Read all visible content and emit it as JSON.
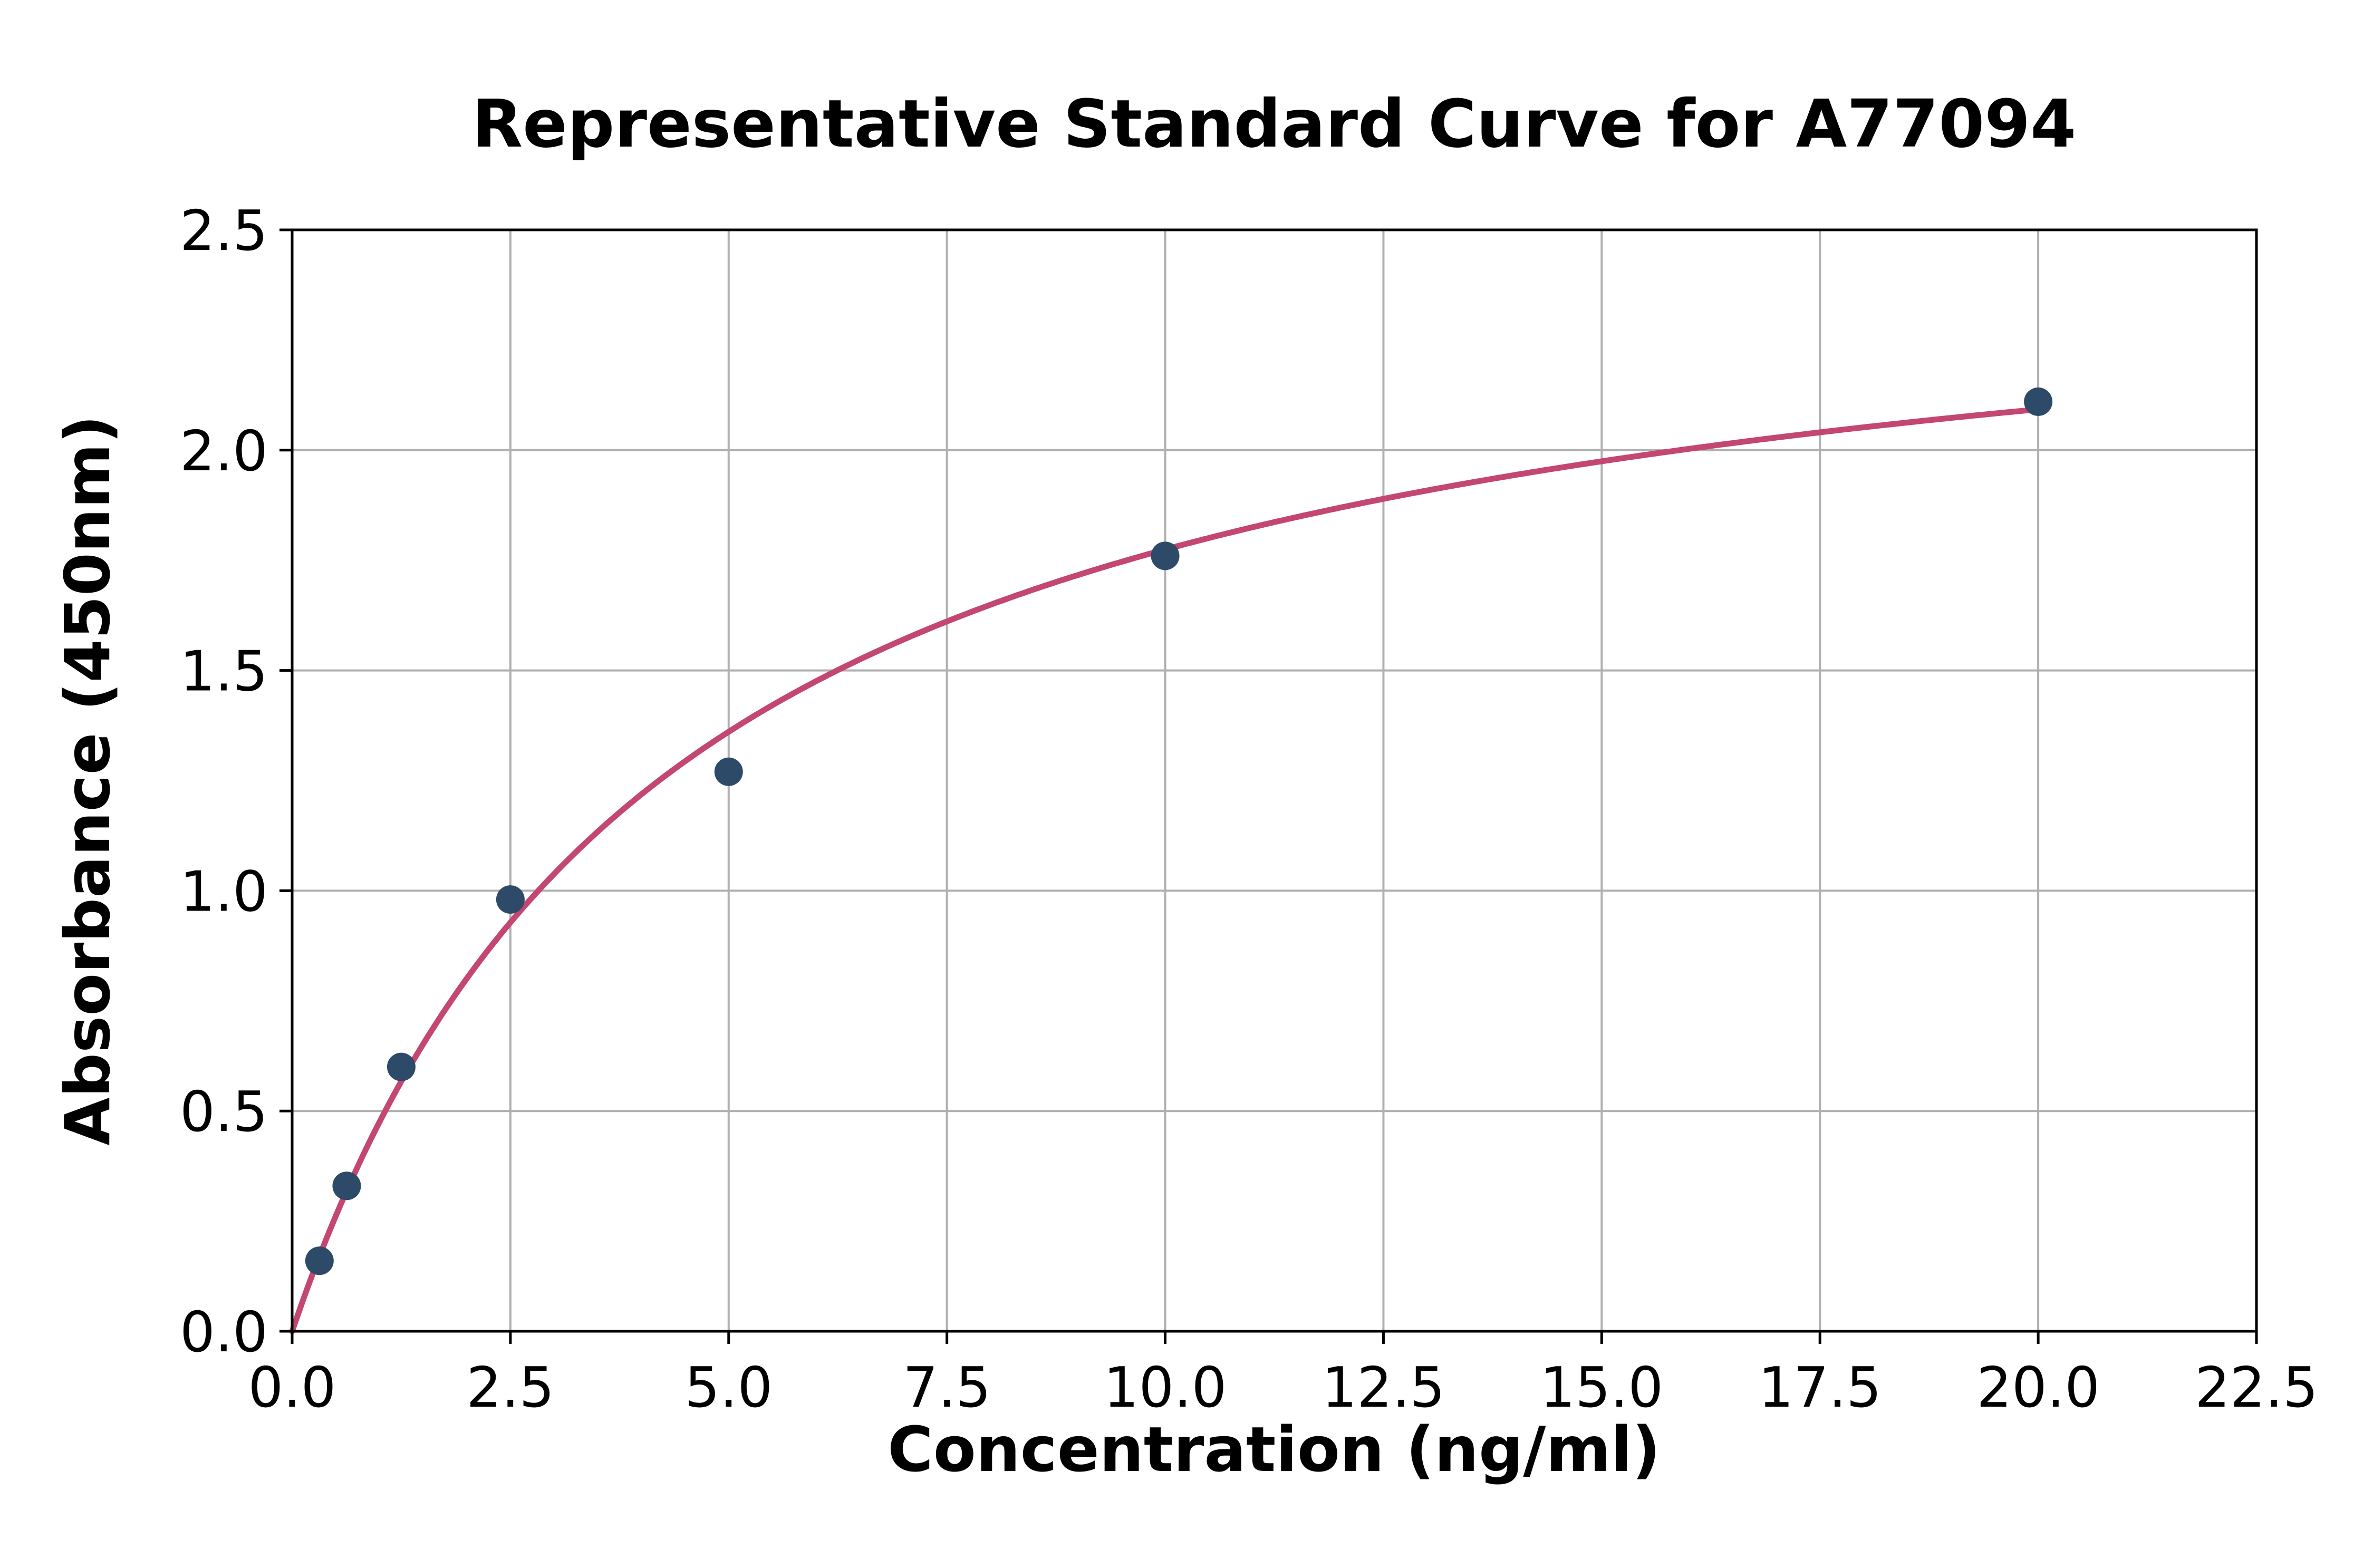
{
  "chart_data": {
    "type": "scatter",
    "title": "Representative Standard Curve for A77094",
    "xlabel": "Concentration (ng/ml)",
    "ylabel": "Absorbance (450nm)",
    "xlim": [
      0,
      22.5
    ],
    "ylim": [
      0,
      2.5
    ],
    "x_ticks": [
      0.0,
      2.5,
      5.0,
      7.5,
      10.0,
      12.5,
      15.0,
      17.5,
      20.0,
      22.5
    ],
    "x_tick_labels": [
      "0.0",
      "2.5",
      "5.0",
      "7.5",
      "10.0",
      "12.5",
      "15.0",
      "17.5",
      "20.0",
      "22.5"
    ],
    "y_ticks": [
      0.0,
      0.5,
      1.0,
      1.5,
      2.0,
      2.5
    ],
    "y_tick_labels": [
      "0.0",
      "0.5",
      "1.0",
      "1.5",
      "2.0",
      "2.5"
    ],
    "grid": true,
    "legend": "none",
    "points": {
      "x": [
        0.313,
        0.625,
        1.25,
        2.5,
        5.0,
        10.0,
        20.0
      ],
      "y": [
        0.16,
        0.33,
        0.6,
        0.98,
        1.27,
        1.76,
        2.11
      ]
    },
    "fit_curve": {
      "type": "4pl",
      "a": 0.0,
      "b": 1.0,
      "c": 4.37,
      "d": 2.55,
      "x_range": [
        0,
        20
      ]
    },
    "colors": {
      "curve": "#c34770",
      "points": "#2d4a68",
      "grid": "#b0b0b0",
      "axis": "#000000",
      "background": "#ffffff"
    }
  }
}
